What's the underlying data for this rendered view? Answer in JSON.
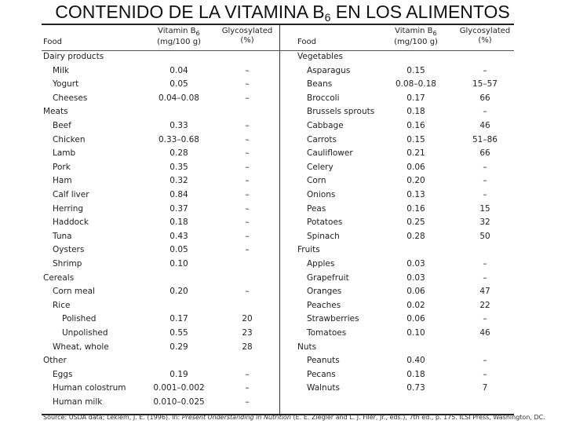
{
  "title": {
    "main": "CONTENIDO DE LA VITAMINA B",
    "sub": "6",
    "tail": " EN LOS ALIMENTOS"
  },
  "headers": {
    "food": "Food",
    "vitamin_line1": "Vitamin B",
    "vitamin_sub": "6",
    "vitamin_line2": "(mg/100 g)",
    "glyco_line1": "Glycosylated",
    "glyco_line2": "(%)"
  },
  "left_rows": [
    {
      "food": "Dairy products",
      "b6": "",
      "gly": "",
      "level": 0
    },
    {
      "food": "Milk",
      "b6": "0.04",
      "gly": "–",
      "level": 1
    },
    {
      "food": "Yogurt",
      "b6": "0.05",
      "gly": "–",
      "level": 1
    },
    {
      "food": "Cheeses",
      "b6": "0.04–0.08",
      "gly": "–",
      "level": 1
    },
    {
      "food": "Meats",
      "b6": "",
      "gly": "",
      "level": 0
    },
    {
      "food": "Beef",
      "b6": "0.33",
      "gly": "–",
      "level": 1
    },
    {
      "food": "Chicken",
      "b6": "0.33–0.68",
      "gly": "–",
      "level": 1
    },
    {
      "food": "Lamb",
      "b6": "0.28",
      "gly": "–",
      "level": 1
    },
    {
      "food": "Pork",
      "b6": "0.35",
      "gly": "–",
      "level": 1
    },
    {
      "food": "Ham",
      "b6": "0.32",
      "gly": "–",
      "level": 1
    },
    {
      "food": "Calf liver",
      "b6": "0.84",
      "gly": "–",
      "level": 1
    },
    {
      "food": "Herring",
      "b6": "0.37",
      "gly": "–",
      "level": 1
    },
    {
      "food": "Haddock",
      "b6": "0.18",
      "gly": "–",
      "level": 1
    },
    {
      "food": "Tuna",
      "b6": "0.43",
      "gly": "–",
      "level": 1
    },
    {
      "food": "Oysters",
      "b6": "0.05",
      "gly": "–",
      "level": 1
    },
    {
      "food": "Shrimp",
      "b6": "0.10",
      "gly": "",
      "level": 1
    },
    {
      "food": "Cereals",
      "b6": "",
      "gly": "",
      "level": 0
    },
    {
      "food": "Corn meal",
      "b6": "0.20",
      "gly": "–",
      "level": 1
    },
    {
      "food": "Rice",
      "b6": "",
      "gly": "",
      "level": 1
    },
    {
      "food": "Polished",
      "b6": "0.17",
      "gly": "20",
      "level": 2
    },
    {
      "food": "Unpolished",
      "b6": "0.55",
      "gly": "23",
      "level": 2
    },
    {
      "food": "Wheat, whole",
      "b6": "0.29",
      "gly": "28",
      "level": 1
    },
    {
      "food": "Other",
      "b6": "",
      "gly": "",
      "level": 0
    },
    {
      "food": "Eggs",
      "b6": "0.19",
      "gly": "–",
      "level": 1
    },
    {
      "food": "Human colostrum",
      "b6": "0.001–0.002",
      "gly": "–",
      "level": 1
    },
    {
      "food": "Human milk",
      "b6": "0.010–0.025",
      "gly": "–",
      "level": 1
    }
  ],
  "right_rows": [
    {
      "food": "Vegetables",
      "b6": "",
      "gly": "",
      "level": 0
    },
    {
      "food": "Asparagus",
      "b6": "0.15",
      "gly": "–",
      "level": 1
    },
    {
      "food": "Beans",
      "b6": "0.08–0.18",
      "gly": "15–57",
      "level": 1
    },
    {
      "food": "Broccoli",
      "b6": "0.17",
      "gly": "66",
      "level": 1
    },
    {
      "food": "Brussels sprouts",
      "b6": "0.18",
      "gly": "–",
      "level": 1
    },
    {
      "food": "Cabbage",
      "b6": "0.16",
      "gly": "46",
      "level": 1
    },
    {
      "food": "Carrots",
      "b6": "0.15",
      "gly": "51–86",
      "level": 1
    },
    {
      "food": "Cauliflower",
      "b6": "0.21",
      "gly": "66",
      "level": 1
    },
    {
      "food": "Celery",
      "b6": "0.06",
      "gly": "–",
      "level": 1
    },
    {
      "food": "Corn",
      "b6": "0.20",
      "gly": "–",
      "level": 1
    },
    {
      "food": "Onions",
      "b6": "0.13",
      "gly": "–",
      "level": 1
    },
    {
      "food": "Peas",
      "b6": "0.16",
      "gly": "15",
      "level": 1
    },
    {
      "food": "Potatoes",
      "b6": "0.25",
      "gly": "32",
      "level": 1
    },
    {
      "food": "Spinach",
      "b6": "0.28",
      "gly": "50",
      "level": 1
    },
    {
      "food": "Fruits",
      "b6": "",
      "gly": "",
      "level": 0
    },
    {
      "food": "Apples",
      "b6": "0.03",
      "gly": "–",
      "level": 1
    },
    {
      "food": "Grapefruit",
      "b6": "0.03",
      "gly": "–",
      "level": 1
    },
    {
      "food": "Oranges",
      "b6": "0.06",
      "gly": "47",
      "level": 1
    },
    {
      "food": "Peaches",
      "b6": "0.02",
      "gly": "22",
      "level": 1
    },
    {
      "food": "Strawberries",
      "b6": "0.06",
      "gly": "–",
      "level": 1
    },
    {
      "food": "Tomatoes",
      "b6": "0.10",
      "gly": "46",
      "level": 1
    },
    {
      "food": "Nuts",
      "b6": "",
      "gly": "",
      "level": 0
    },
    {
      "food": "Peanuts",
      "b6": "0.40",
      "gly": "–",
      "level": 1
    },
    {
      "food": "Pecans",
      "b6": "0.18",
      "gly": "–",
      "level": 1
    },
    {
      "food": "Walnuts",
      "b6": "0.73",
      "gly": "7",
      "level": 1
    }
  ],
  "source": {
    "prefix": "Source: USDA data; Leklem, J. E. (1996). In: ",
    "italic": "Present Understanding in Nutrition",
    "suffix": " (E. E. Ziegler and L. J. Filer, Jr., eds.), 7th ed., p. 175. ILSI Press, Washington, DC."
  }
}
